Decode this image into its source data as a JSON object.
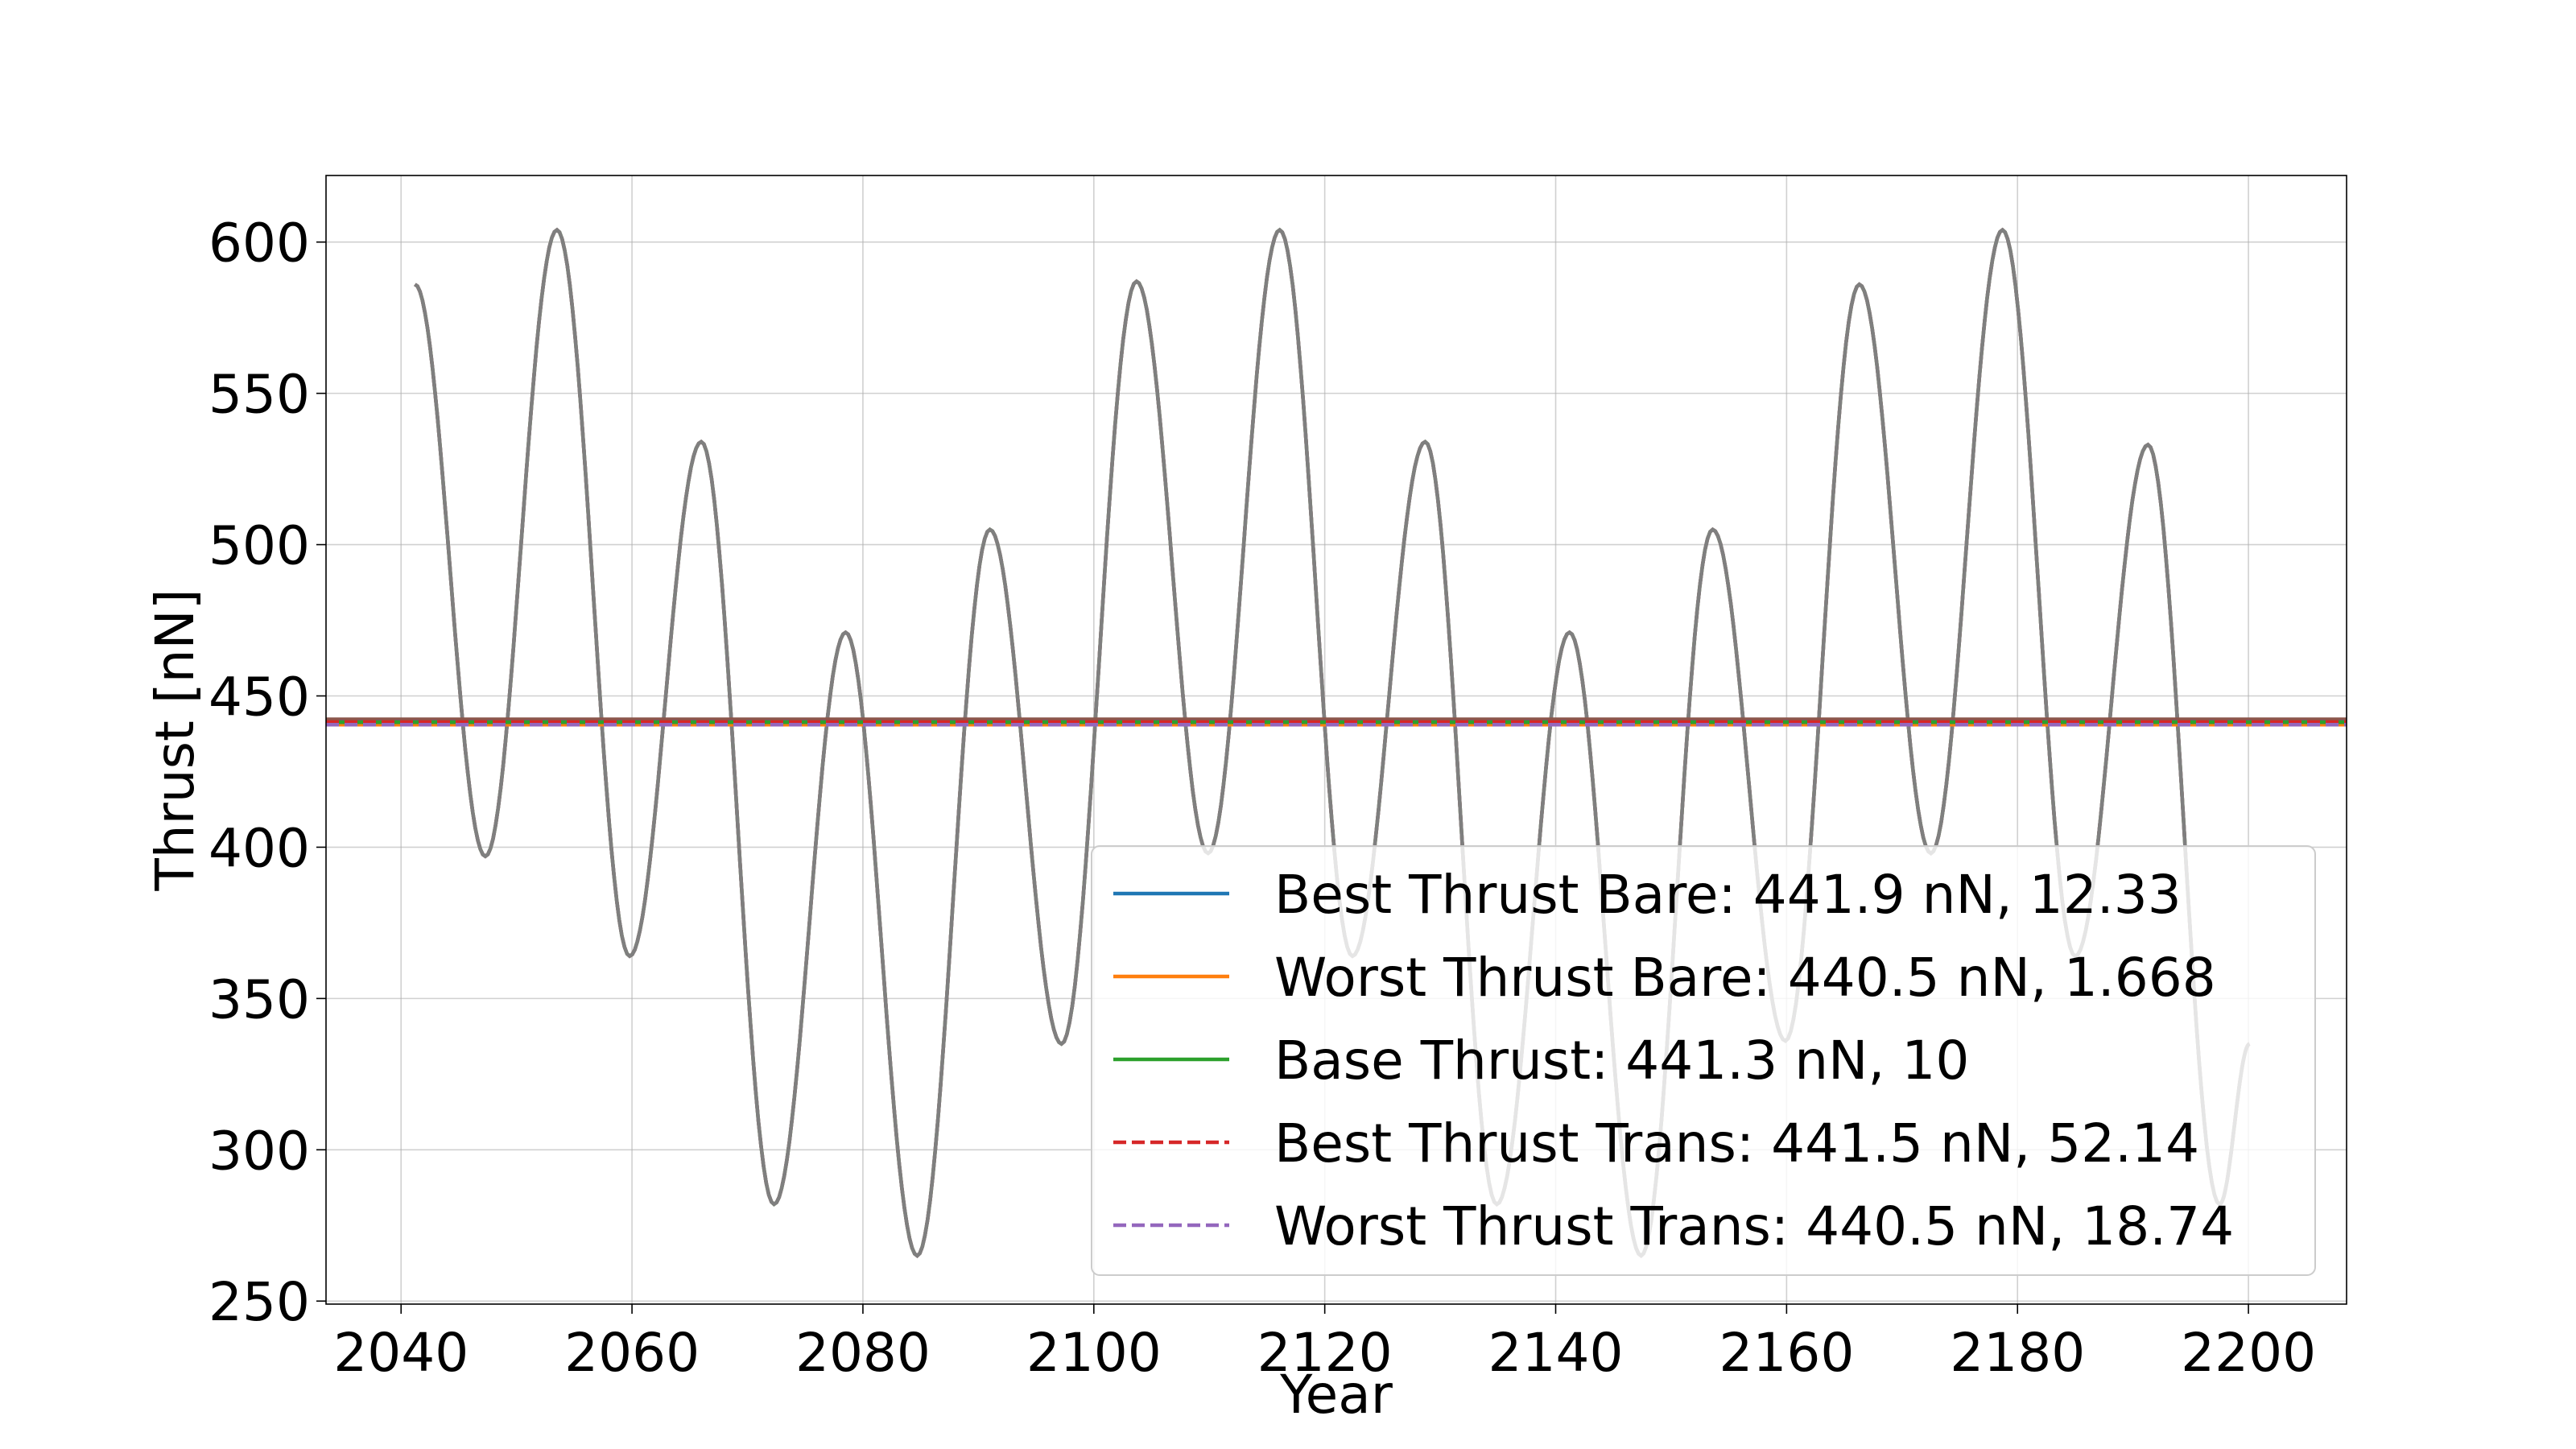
{
  "chart_data": {
    "type": "line",
    "title": "",
    "xlabel": "Year",
    "ylabel": "Thrust [nN]",
    "xlim": [
      2033.5,
      2208.5
    ],
    "ylim": [
      249,
      622
    ],
    "xticks": [
      2040,
      2060,
      2080,
      2100,
      2120,
      2140,
      2160,
      2180,
      2200
    ],
    "yticks": [
      250,
      300,
      350,
      400,
      450,
      500,
      550,
      600
    ],
    "grid": true,
    "legend_position": "lower-right",
    "thrust_curve": {
      "x_start": 2041.2,
      "x_end": 2200.1,
      "extrema": [
        [
          2041.2,
          586
        ],
        [
          2047.3,
          397
        ],
        [
          2053.5,
          604
        ],
        [
          2059.8,
          364
        ],
        [
          2066.0,
          534
        ],
        [
          2072.3,
          282
        ],
        [
          2078.5,
          471
        ],
        [
          2084.7,
          265
        ],
        [
          2091.0,
          505
        ],
        [
          2097.2,
          335
        ],
        [
          2103.7,
          587
        ],
        [
          2109.9,
          398
        ],
        [
          2116.1,
          604
        ],
        [
          2122.4,
          364
        ],
        [
          2128.7,
          534
        ],
        [
          2134.9,
          282
        ],
        [
          2141.2,
          471
        ],
        [
          2147.4,
          265
        ],
        [
          2153.6,
          505
        ],
        [
          2159.9,
          336
        ],
        [
          2166.3,
          586
        ],
        [
          2172.5,
          398
        ],
        [
          2178.7,
          604
        ],
        [
          2185.0,
          364
        ],
        [
          2191.3,
          533
        ],
        [
          2197.5,
          282
        ],
        [
          2200.1,
          335
        ]
      ]
    },
    "series": [
      {
        "name": "Best Thrust Bare: 441.9 nN, 12.33",
        "value": 441.9,
        "color": "#1f77b4",
        "dash": "solid"
      },
      {
        "name": "Worst Thrust Bare: 440.5 nN, 1.668",
        "value": 440.5,
        "color": "#ff7f0e",
        "dash": "solid"
      },
      {
        "name": "Base Thrust: 441.3 nN, 10",
        "value": 441.3,
        "color": "#2ca02c",
        "dash": "solid"
      },
      {
        "name": "Best Thrust Trans: 441.5 nN, 52.14",
        "value": 441.5,
        "color": "#d62728",
        "dash": "dashed"
      },
      {
        "name": "Worst Thrust Trans: 440.5 nN, 18.74",
        "value": 440.5,
        "color": "#9467bd",
        "dash": "dashed"
      }
    ]
  }
}
